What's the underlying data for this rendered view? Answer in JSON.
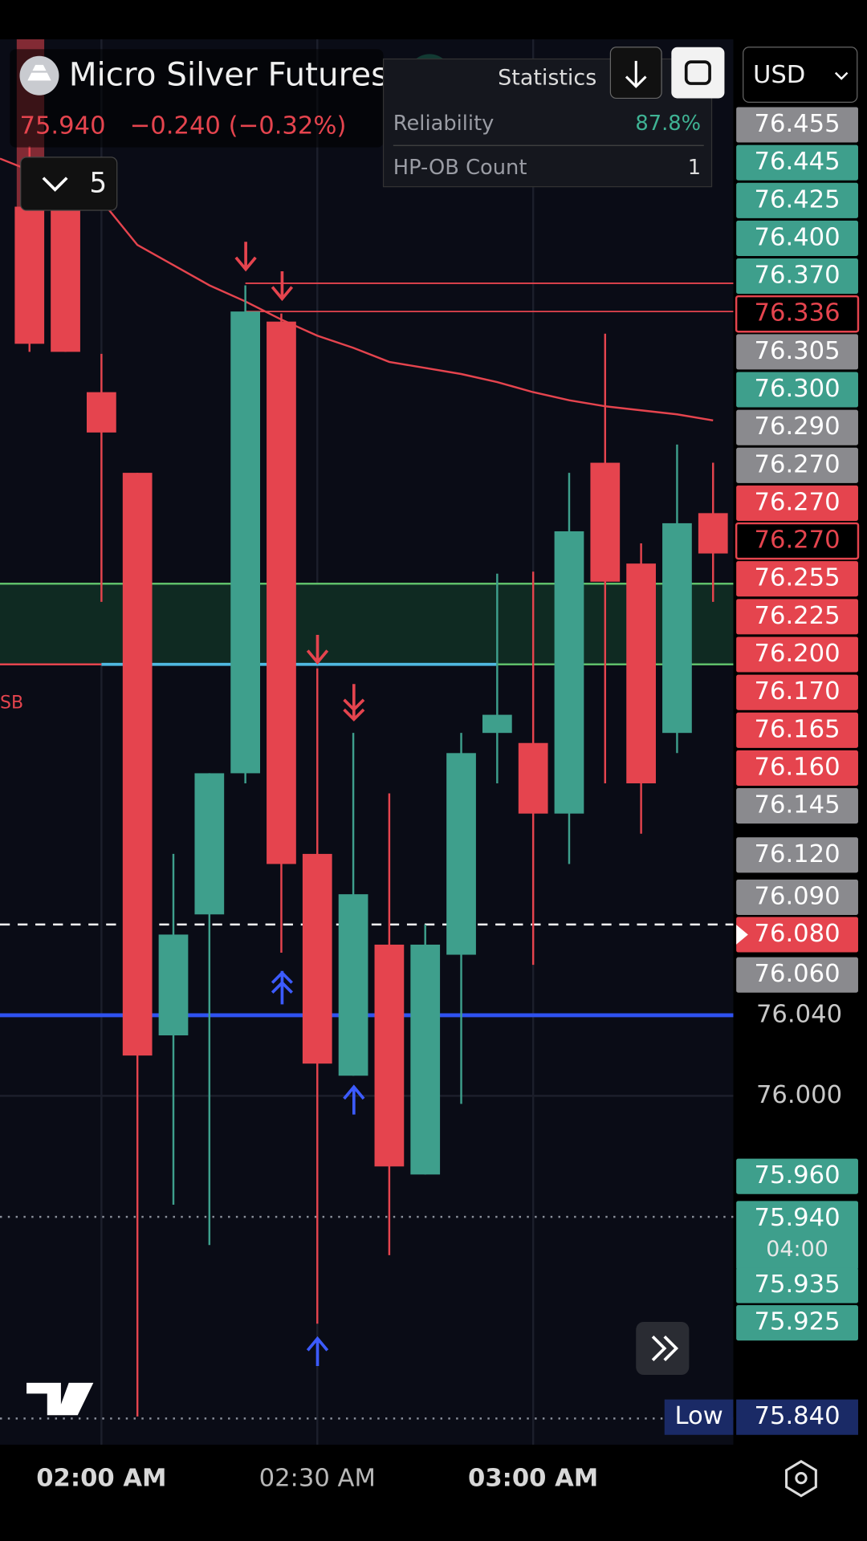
{
  "header": {
    "symbol": "Micro Silver Futures",
    "price": "75.940",
    "change": "−0.240 (−0.32%)",
    "interval_count": "5",
    "currency": "USD"
  },
  "statistics": {
    "title": "Statistics",
    "rows": [
      [
        "Reliability",
        "87.8%"
      ],
      [
        "HP-OB Count",
        "1"
      ]
    ]
  },
  "side_label": "SB",
  "price_tags": [
    {
      "label": "76.455",
      "style": "gray"
    },
    {
      "label": "76.445",
      "style": "green"
    },
    {
      "label": "76.425",
      "style": "green"
    },
    {
      "label": "76.400",
      "style": "green"
    },
    {
      "label": "76.370",
      "style": "green"
    },
    {
      "label": "76.336",
      "style": "outline"
    },
    {
      "label": "76.305",
      "style": "gray"
    },
    {
      "label": "76.300",
      "style": "green"
    },
    {
      "label": "76.290",
      "style": "gray"
    },
    {
      "label": "76.270",
      "style": "gray"
    },
    {
      "label": "76.270",
      "style": "red"
    },
    {
      "label": "76.270",
      "style": "outline"
    },
    {
      "label": "76.255",
      "style": "red"
    },
    {
      "label": "76.225",
      "style": "red"
    },
    {
      "label": "76.200",
      "style": "red"
    },
    {
      "label": "76.170",
      "style": "red"
    },
    {
      "label": "76.165",
      "style": "red"
    },
    {
      "label": "76.160",
      "style": "red"
    },
    {
      "label": "76.145",
      "style": "gray"
    },
    {
      "label": "76.120",
      "style": "gray"
    },
    {
      "label": "76.090",
      "style": "gray"
    },
    {
      "label": "76.080",
      "style": "red"
    },
    {
      "label": "76.060",
      "style": "gray"
    },
    {
      "label": "75.960",
      "style": "green"
    },
    {
      "label": "75.940",
      "style": "green",
      "sub": "04:00"
    },
    {
      "label": "75.935",
      "style": "green"
    },
    {
      "label": "75.925",
      "style": "green"
    }
  ],
  "low_tag": {
    "label": "Low",
    "value": "75.840"
  },
  "chart_data": {
    "type": "candlestick",
    "categories": [
      null,
      null,
      "02:00 AM",
      null,
      null,
      null,
      null,
      null,
      "02:30 AM",
      null,
      null,
      null,
      null,
      null,
      "03:00 AM",
      null,
      null,
      null,
      null,
      null
    ],
    "open": [
      76.441,
      76.444,
      76.349,
      76.309,
      76.03,
      76.09,
      76.16,
      76.384,
      76.12,
      76.01,
      76.075,
      75.961,
      76.07,
      76.18,
      76.175,
      76.14,
      76.314,
      76.264,
      76.18,
      76.289
    ],
    "high": [
      76.471,
      76.444,
      76.368,
      76.309,
      76.12,
      76.16,
      76.402,
      76.388,
      76.212,
      76.18,
      76.15,
      76.085,
      76.18,
      76.259,
      76.26,
      76.309,
      76.378,
      76.274,
      76.323,
      76.314
    ],
    "low": [
      76.369,
      76.369,
      76.245,
      75.841,
      75.946,
      75.926,
      76.155,
      76.071,
      75.887,
      76.01,
      75.921,
      75.961,
      75.996,
      76.155,
      76.065,
      76.115,
      76.155,
      76.13,
      76.17,
      76.245
    ],
    "close": [
      76.373,
      76.369,
      76.329,
      76.02,
      76.08,
      76.16,
      76.389,
      76.115,
      76.016,
      76.1,
      75.965,
      76.075,
      76.17,
      76.189,
      76.14,
      76.28,
      76.255,
      76.155,
      76.284,
      76.269
    ],
    "up_color": "#3e9f8c",
    "down_color": "#e5444e",
    "ma": {
      "color": "#e5444e",
      "values": [
        76.459,
        76.451,
        76.444,
        76.422,
        76.412,
        76.402,
        76.394,
        76.385,
        76.377,
        76.371,
        76.364,
        76.361,
        76.358,
        76.354,
        76.349,
        76.345,
        76.342,
        76.34,
        76.338,
        76.335
      ]
    },
    "levels": [
      {
        "value": 76.04,
        "color": "#2f52f0",
        "style": "solid"
      },
      {
        "value": 76.085,
        "color": "#ffffff",
        "style": "dashed"
      },
      {
        "value": 75.94,
        "color": "#8a8f9a",
        "style": "dotted"
      },
      {
        "value": 75.84,
        "color": "#8a8f9a",
        "style": "dotted"
      },
      {
        "value": 76.403,
        "color": "#e5444e",
        "style": "thin"
      },
      {
        "value": 76.389,
        "color": "#e5444e",
        "style": "thin"
      }
    ],
    "zone": {
      "from": 76.214,
      "to": 76.254,
      "color": "#0f2a22",
      "edge": "#5fbf6a"
    },
    "ylim": [
      75.827,
      76.524
    ],
    "yticks": [
      {
        "value": 76.04,
        "label": "76.040"
      },
      {
        "value": 76,
        "label": "76.000"
      }
    ],
    "grid": true
  }
}
